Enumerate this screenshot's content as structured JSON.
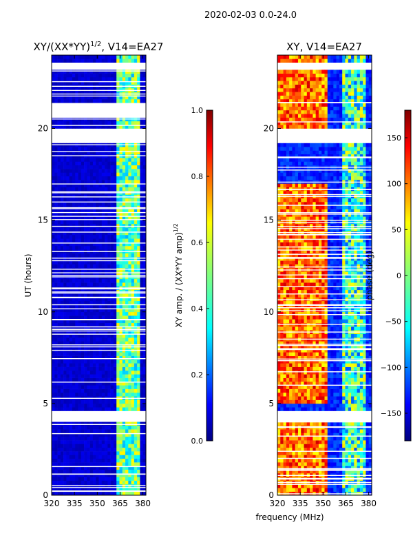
{
  "suptitle": "2020-02-03 0.0-24.0",
  "chart_data": [
    {
      "type": "heatmap",
      "title_main": "XY/(XX*YY)",
      "title_sup": "1/2",
      "title_tail": ", V14=EA27",
      "xlabel": "",
      "ylabel": "UT (hours)",
      "xlim": [
        320,
        382
      ],
      "ylim": [
        0,
        24
      ],
      "xticks": [
        "320",
        "335",
        "350",
        "365",
        "380"
      ],
      "yticks": [
        "0",
        "5",
        "10",
        "15",
        "20"
      ],
      "colorbar": {
        "label": "XY amp. / (XX*YY amp)",
        "label_sup": "1/2",
        "range": [
          0.0,
          1.0
        ],
        "ticks": [
          "0.0",
          "0.2",
          "0.4",
          "0.6",
          "0.8",
          "1.0"
        ],
        "colormap": "jet"
      },
      "data_gaps_hours": [
        [
          19.3,
          20.0
        ],
        [
          20.6,
          21.3
        ],
        [
          23.2,
          23.5
        ],
        [
          4.1,
          4.6
        ]
      ],
      "bright_band_mhz": [
        362,
        379
      ]
    },
    {
      "type": "heatmap",
      "title": "XY, V14=EA27",
      "xlabel": "frequency (MHz)",
      "ylabel": "",
      "xlim": [
        320,
        382
      ],
      "ylim": [
        0,
        24
      ],
      "xticks": [
        "320",
        "335",
        "350",
        "365",
        "380"
      ],
      "yticks": [
        "0",
        "5",
        "10",
        "15",
        "20"
      ],
      "colorbar": {
        "label": "phase (deg)",
        "range": [
          -180,
          180
        ],
        "ticks": [
          "−150",
          "−100",
          "−50",
          "0",
          "50",
          "100",
          "150"
        ],
        "colormap": "jet"
      },
      "data_gaps_hours": [
        [
          19.3,
          20.0
        ],
        [
          23.2,
          23.5
        ],
        [
          4.1,
          4.6
        ]
      ]
    }
  ],
  "colors": {
    "jet": [
      "#00007f",
      "#0000ff",
      "#007fff",
      "#00ffff",
      "#7fff7f",
      "#ffff00",
      "#ff7f00",
      "#ff0000",
      "#7f0000"
    ]
  }
}
